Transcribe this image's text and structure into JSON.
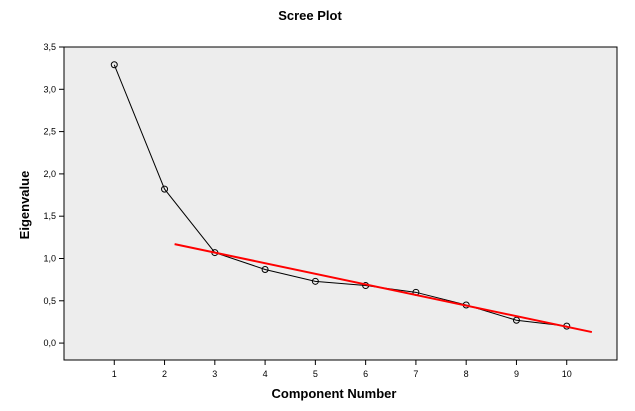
{
  "chart_data": {
    "type": "line",
    "title": "Scree Plot",
    "xlabel": "Component Number",
    "ylabel": "Eigenvalue",
    "x": [
      1,
      2,
      3,
      4,
      5,
      6,
      7,
      8,
      9,
      10
    ],
    "x_tick_labels": [
      "1",
      "2",
      "3",
      "4",
      "5",
      "6",
      "7",
      "8",
      "9",
      "10"
    ],
    "y_tick_values": [
      0.0,
      0.5,
      1.0,
      1.5,
      2.0,
      2.5,
      3.0,
      3.5
    ],
    "y_tick_labels": [
      "0,0",
      "0,5",
      "1,0",
      "1,5",
      "2,0",
      "2,5",
      "3,0",
      "3,5"
    ],
    "xlim": [
      0,
      11
    ],
    "ylim": [
      -0.2,
      3.5
    ],
    "grid": false,
    "series": [
      {
        "values": [
          3.29,
          1.82,
          1.07,
          0.87,
          0.73,
          0.68,
          0.6,
          0.45,
          0.27,
          0.2
        ],
        "color": "#000000",
        "marker": "open-circle"
      }
    ],
    "trend_line": {
      "color": "#ff0000",
      "x": [
        2.2,
        10.5
      ],
      "y": [
        1.17,
        0.13
      ]
    },
    "plot_background": "#ededed"
  }
}
